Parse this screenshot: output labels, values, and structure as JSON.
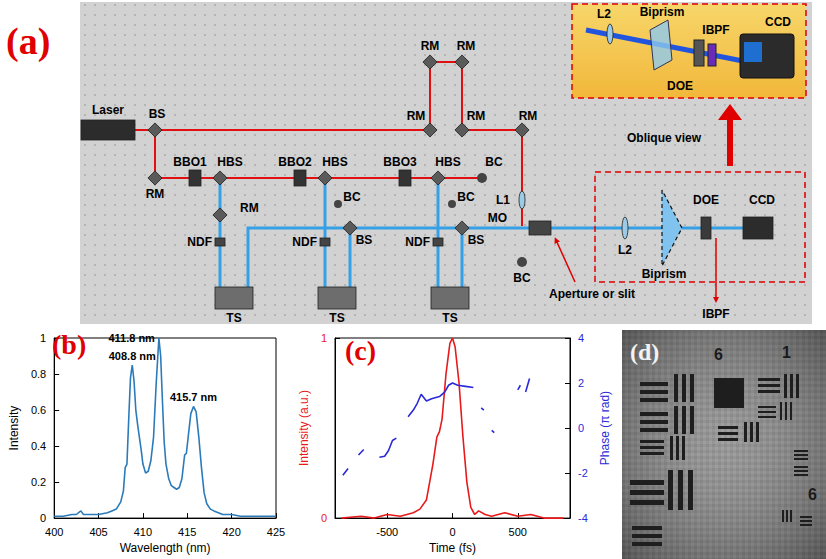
{
  "figure": {
    "a": {
      "label": "(a)",
      "laser": "Laser",
      "bs": "BS",
      "rm": "RM",
      "bbo": [
        "BBO1",
        "BBO2",
        "BBO3"
      ],
      "hbs": "HBS",
      "bc": "BC",
      "ndf": "NDF",
      "ts": "TS",
      "l1": "L1",
      "mo": "MO",
      "aperture": "Aperture or slit",
      "l2": "L2",
      "biprism": "Biprism",
      "doe": "DOE",
      "ccd": "CCD",
      "ibpf": "IBPF",
      "oblique_view": "Oblique view"
    },
    "d": {
      "label": "(d)",
      "target_numbers": [
        "6",
        "1",
        "6"
      ]
    }
  },
  "chart_data": [
    {
      "label": "(b)",
      "type": "line",
      "color": "#2b7bba",
      "xlabel": "Wavelength (nm)",
      "ylabel": "Intensity",
      "x": [
        400,
        401,
        402,
        402.5,
        403,
        403.3,
        404,
        405,
        406,
        406.5,
        407,
        407.5,
        407.8,
        408,
        408.2,
        408.4,
        408.6,
        408.8,
        409,
        409.2,
        409.4,
        409.6,
        409.8,
        410,
        410.3,
        410.6,
        410.9,
        411.2,
        411.5,
        411.8,
        412,
        412.2,
        412.4,
        412.6,
        412.9,
        413.2,
        413.5,
        413.8,
        414.1,
        414.4,
        414.7,
        414.9,
        415.1,
        415.4,
        415.7,
        416,
        416.3,
        416.6,
        416.9,
        417.2,
        417.6,
        418,
        419,
        420,
        421,
        422,
        423,
        424,
        425
      ],
      "values": [
        0.01,
        0.01,
        0.02,
        0.02,
        0.04,
        0.02,
        0.02,
        0.02,
        0.03,
        0.04,
        0.05,
        0.09,
        0.15,
        0.28,
        0.3,
        0.55,
        0.78,
        0.85,
        0.76,
        0.6,
        0.52,
        0.45,
        0.38,
        0.3,
        0.25,
        0.26,
        0.32,
        0.45,
        0.75,
        1.0,
        0.9,
        0.65,
        0.42,
        0.3,
        0.22,
        0.18,
        0.17,
        0.16,
        0.17,
        0.22,
        0.35,
        0.36,
        0.45,
        0.58,
        0.62,
        0.59,
        0.45,
        0.28,
        0.14,
        0.08,
        0.05,
        0.04,
        0.02,
        0.02,
        0.01,
        0.01,
        0.01,
        0.01,
        0.01
      ],
      "xlim": [
        400,
        425
      ],
      "xticks": [
        400,
        405,
        410,
        415,
        420,
        425
      ],
      "ylim": [
        0,
        1
      ],
      "yticks": [
        0,
        0.2,
        0.4,
        0.6,
        0.8,
        1
      ],
      "grid": false,
      "annotations": [
        {
          "text": "408.8 nm",
          "x": 408.8,
          "y": 0.85
        },
        {
          "text": "411.8 nm",
          "x": 411.8,
          "y": 1.0
        },
        {
          "text": "415.7 nm",
          "x": 415.7,
          "y": 0.62
        }
      ]
    },
    {
      "label": "(c)",
      "type": "line",
      "xlabel": "Time (fs)",
      "ylabel": "Intensity (a.u.)",
      "y2label": "Phase (π rad)",
      "xlim": [
        -900,
        900
      ],
      "xticks": [
        -500,
        0,
        500
      ],
      "ylim": [
        0,
        1
      ],
      "yticks": [
        0,
        1
      ],
      "y2lim": [
        -4,
        4
      ],
      "y2ticks": [
        -4,
        -2,
        0,
        2,
        4
      ],
      "grid": false,
      "series": [
        {
          "color": "#e8191a",
          "x": [
            -850,
            -700,
            -600,
            -500,
            -400,
            -300,
            -250,
            -200,
            -150,
            -120,
            -100,
            -80,
            -50,
            -20,
            0,
            20,
            50,
            80,
            110,
            140,
            170,
            200,
            250,
            300,
            400,
            500,
            600,
            700,
            850
          ],
          "values": [
            0,
            0.01,
            0,
            0.02,
            0.01,
            0.03,
            0.05,
            0.1,
            0.3,
            0.45,
            0.48,
            0.55,
            0.8,
            0.97,
            1,
            0.95,
            0.75,
            0.45,
            0.2,
            0.06,
            0.02,
            0.04,
            0.02,
            0.01,
            0.03,
            0.01,
            0.02,
            0,
            0
          ]
        },
        {
          "color": "#2a2ad8",
          "axis": "y2",
          "x": [
            -840,
            -800,
            -770,
            -720,
            -680,
            -640,
            -560,
            -520,
            -490,
            -460,
            -430,
            -410,
            -340,
            -300,
            -270,
            -240,
            -200,
            -160,
            -100,
            -60,
            -30,
            0,
            40,
            100,
            160,
            190,
            220,
            240,
            260,
            300,
            320,
            340,
            500,
            520,
            540,
            560,
            590
          ],
          "values": [
            -2.1,
            -1.8,
            null,
            -1.2,
            -0.95,
            null,
            -1.3,
            -1.25,
            -1.0,
            -0.55,
            -0.45,
            null,
            0.5,
            0.8,
            1.1,
            1.5,
            1.2,
            1.3,
            1.4,
            1.6,
            1.9,
            2.0,
            1.9,
            1.85,
            1.8,
            null,
            0.9,
            0.8,
            null,
            -0.1,
            -0.2,
            null,
            1.7,
            1.9,
            null,
            1.6,
            2.2
          ]
        }
      ]
    }
  ]
}
